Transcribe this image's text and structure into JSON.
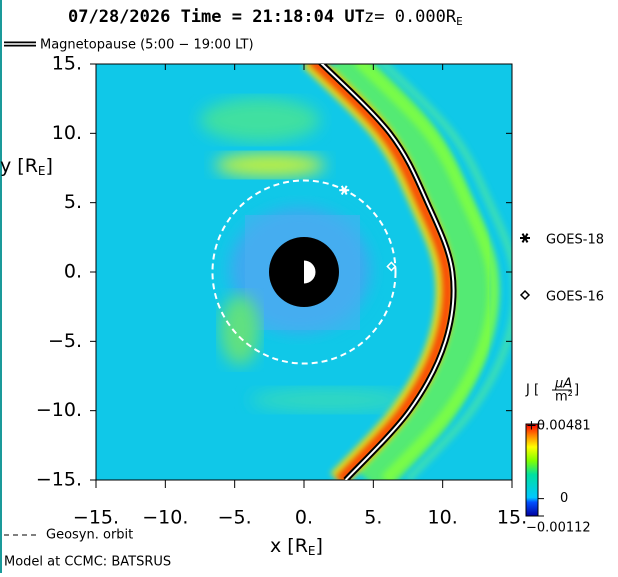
{
  "chart_data": {
    "type": "field",
    "title": "07/28/2026 Time = 21:18:04 UT",
    "z_label": "z= 0.000R",
    "z_label_sub": "E",
    "xlabel": "x [R",
    "xlabel_sub": "E",
    "xlabel_end": "]",
    "ylabel": "y [R",
    "ylabel_sub": "E",
    "ylabel_end": "]",
    "xlim": [
      -15,
      15
    ],
    "ylim": [
      -15,
      15
    ],
    "xticks": [
      {
        "value": -15,
        "label": "−15."
      },
      {
        "value": -10,
        "label": "−10."
      },
      {
        "value": -5,
        "label": "−5."
      },
      {
        "value": 0,
        "label": "0."
      },
      {
        "value": 5,
        "label": "5."
      },
      {
        "value": 10,
        "label": "10."
      },
      {
        "value": 15,
        "label": "15."
      }
    ],
    "yticks": [
      {
        "value": -15,
        "label": "−15."
      },
      {
        "value": -10,
        "label": "−10."
      },
      {
        "value": -5,
        "label": "−5."
      },
      {
        "value": 0,
        "label": "0."
      },
      {
        "value": 5,
        "label": "5."
      },
      {
        "value": 10,
        "label": "10."
      },
      {
        "value": 15,
        "label": "15."
      }
    ],
    "series": [
      {
        "name": "Magnetopause (5:00 − 19:00 LT)",
        "kind": "line",
        "color": "#000000",
        "x": [
          1.0,
          6.2,
          8.9,
          10.7,
          10.2,
          7.6,
          3.0
        ],
        "y": [
          15.3,
          10,
          5,
          0,
          -5,
          -10,
          -15
        ]
      },
      {
        "name": "GOES-18",
        "kind": "marker",
        "marker": "star",
        "color": "#ffffff",
        "x": [
          2.9
        ],
        "y": [
          5.9
        ]
      },
      {
        "name": "GOES-16",
        "kind": "marker",
        "marker": "diamond",
        "color": "#ffffff",
        "x": [
          6.3
        ],
        "y": [
          0.4
        ]
      }
    ],
    "orbit": {
      "name": "Geosyn. orbit",
      "radius": 6.6,
      "color": "#ffffff"
    },
    "colorbar": {
      "label": "J [",
      "label_num": "μA",
      "label_den": "m²",
      "label_end": "]",
      "lim": [
        -0.00112,
        0.00481
      ],
      "ticks": [
        {
          "value": 0.00481,
          "label": "+0.00481"
        },
        0,
        {
          "value": -0.00112,
          "label": "−0.00112"
        }
      ]
    },
    "footer": "Model at CCMC: BATSRUS"
  }
}
